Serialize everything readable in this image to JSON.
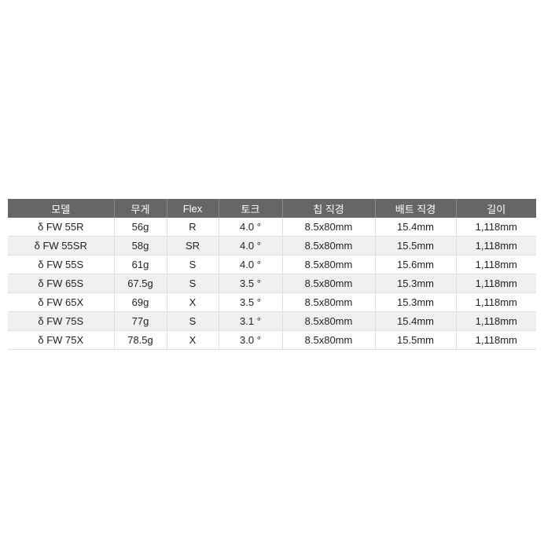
{
  "table": {
    "headers": [
      "모델",
      "무게",
      "Flex",
      "토크",
      "칩 직경",
      "배트 직경",
      "길이"
    ],
    "rows": [
      [
        "δ FW 55R",
        "56g",
        "R",
        "4.0 °",
        "8.5x80mm",
        "15.4mm",
        "1,118mm"
      ],
      [
        "δ FW 55SR",
        "58g",
        "SR",
        "4.0 °",
        "8.5x80mm",
        "15.5mm",
        "1,118mm"
      ],
      [
        "δ FW 55S",
        "61g",
        "S",
        "4.0 °",
        "8.5x80mm",
        "15.6mm",
        "1,118mm"
      ],
      [
        "δ FW 65S",
        "67.5g",
        "S",
        "3.5 °",
        "8.5x80mm",
        "15.3mm",
        "1,118mm"
      ],
      [
        "δ FW 65X",
        "69g",
        "X",
        "3.5 °",
        "8.5x80mm",
        "15.3mm",
        "1,118mm"
      ],
      [
        "δ FW 75S",
        "77g",
        "S",
        "3.1 °",
        "8.5x80mm",
        "15.4mm",
        "1,118mm"
      ],
      [
        "δ FW 75X",
        "78.5g",
        "X",
        "3.0 °",
        "8.5x80mm",
        "15.5mm",
        "1,118mm"
      ]
    ]
  },
  "colors": {
    "header_bg": "#666666",
    "alt_row_bg": "#f0f0f0"
  }
}
